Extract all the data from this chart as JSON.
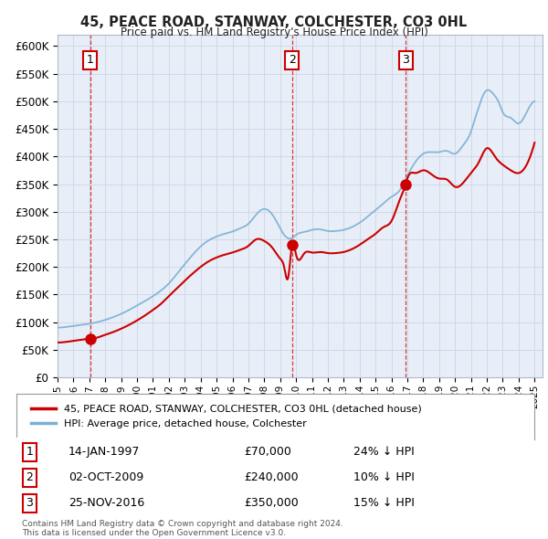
{
  "title": "45, PEACE ROAD, STANWAY, COLCHESTER, CO3 0HL",
  "subtitle": "Price paid vs. HM Land Registry's House Price Index (HPI)",
  "plot_bg_color": "#e8eef8",
  "ylim": [
    0,
    620000
  ],
  "yticks": [
    0,
    50000,
    100000,
    150000,
    200000,
    250000,
    300000,
    350000,
    400000,
    450000,
    500000,
    550000,
    600000
  ],
  "ytick_labels": [
    "£0",
    "£50K",
    "£100K",
    "£150K",
    "£200K",
    "£250K",
    "£300K",
    "£350K",
    "£400K",
    "£450K",
    "£500K",
    "£550K",
    "£600K"
  ],
  "xmin": 1995.0,
  "xmax": 2025.5,
  "sales": [
    {
      "year": 1997.04,
      "price": 70000,
      "label": "1"
    },
    {
      "year": 2009.75,
      "price": 240000,
      "label": "2"
    },
    {
      "year": 2016.9,
      "price": 350000,
      "label": "3"
    }
  ],
  "legend_entries": [
    {
      "label": "45, PEACE ROAD, STANWAY, COLCHESTER, CO3 0HL (detached house)",
      "color": "#cc0000"
    },
    {
      "label": "HPI: Average price, detached house, Colchester",
      "color": "#7ab0d4"
    }
  ],
  "table_rows": [
    {
      "num": "1",
      "date": "14-JAN-1997",
      "price": "£70,000",
      "hpi": "24% ↓ HPI"
    },
    {
      "num": "2",
      "date": "02-OCT-2009",
      "price": "£240,000",
      "hpi": "10% ↓ HPI"
    },
    {
      "num": "3",
      "date": "25-NOV-2016",
      "price": "£350,000",
      "hpi": "15% ↓ HPI"
    }
  ],
  "footnote": "Contains HM Land Registry data © Crown copyright and database right 2024.\nThis data is licensed under the Open Government Licence v3.0.",
  "red_line_color": "#cc0000",
  "blue_line_color": "#7ab0d4",
  "hpi_years": [
    1995,
    1995.5,
    1996,
    1996.5,
    1997,
    1997.5,
    1998,
    1998.5,
    1999,
    1999.5,
    2000,
    2000.5,
    2001,
    2001.5,
    2002,
    2002.5,
    2003,
    2003.5,
    2004,
    2004.5,
    2005,
    2005.5,
    2006,
    2006.5,
    2007,
    2007.5,
    2008,
    2008.5,
    2009,
    2009.25,
    2009.5,
    2009.75,
    2010,
    2010.5,
    2011,
    2011.5,
    2012,
    2012.5,
    2013,
    2013.5,
    2014,
    2014.5,
    2015,
    2015.5,
    2016,
    2016.5,
    2017,
    2017.5,
    2018,
    2018.5,
    2019,
    2019.5,
    2020,
    2020.5,
    2021,
    2021.25,
    2021.5,
    2021.75,
    2022,
    2022.25,
    2022.5,
    2022.75,
    2023,
    2023.5,
    2024,
    2024.5,
    2025
  ],
  "hpi_values": [
    90000,
    91000,
    93000,
    95000,
    97000,
    100000,
    104000,
    109000,
    115000,
    122000,
    130000,
    138000,
    147000,
    157000,
    170000,
    187000,
    205000,
    222000,
    237000,
    248000,
    255000,
    260000,
    264000,
    270000,
    278000,
    295000,
    305000,
    295000,
    270000,
    258000,
    252000,
    252000,
    258000,
    263000,
    267000,
    268000,
    265000,
    265000,
    267000,
    272000,
    280000,
    291000,
    303000,
    315000,
    327000,
    338000,
    365000,
    390000,
    405000,
    408000,
    408000,
    410000,
    405000,
    420000,
    445000,
    468000,
    490000,
    510000,
    520000,
    518000,
    510000,
    498000,
    480000,
    470000,
    460000,
    480000,
    500000
  ],
  "red_years": [
    1995,
    1995.5,
    1996,
    1996.5,
    1997,
    1997.04,
    1997.5,
    1998,
    1998.5,
    1999,
    1999.5,
    2000,
    2000.5,
    2001,
    2001.5,
    2002,
    2002.5,
    2003,
    2003.5,
    2004,
    2004.5,
    2005,
    2005.5,
    2006,
    2006.5,
    2007,
    2007.5,
    2008,
    2008.5,
    2009,
    2009.25,
    2009.5,
    2009.75,
    2010,
    2010.5,
    2011,
    2011.5,
    2012,
    2012.5,
    2013,
    2013.5,
    2014,
    2014.5,
    2015,
    2015.5,
    2016,
    2016.5,
    2016.9,
    2017,
    2017.5,
    2018,
    2018.5,
    2019,
    2019.5,
    2020,
    2020.5,
    2021,
    2021.5,
    2022,
    2022.5,
    2023,
    2023.5,
    2024,
    2024.5,
    2025
  ],
  "red_values": [
    63000,
    64000,
    66000,
    68000,
    70000,
    70000,
    72000,
    77000,
    82000,
    88000,
    95000,
    103000,
    112000,
    122000,
    133000,
    147000,
    161000,
    175000,
    188000,
    200000,
    210000,
    217000,
    222000,
    226000,
    231000,
    238000,
    250000,
    247000,
    235000,
    215000,
    200000,
    180000,
    240000,
    222000,
    224000,
    226000,
    227000,
    225000,
    225000,
    227000,
    232000,
    240000,
    250000,
    260000,
    272000,
    283000,
    320000,
    350000,
    360000,
    370000,
    375000,
    368000,
    360000,
    358000,
    345000,
    352000,
    370000,
    390000,
    415000,
    400000,
    385000,
    375000,
    370000,
    385000,
    425000
  ]
}
